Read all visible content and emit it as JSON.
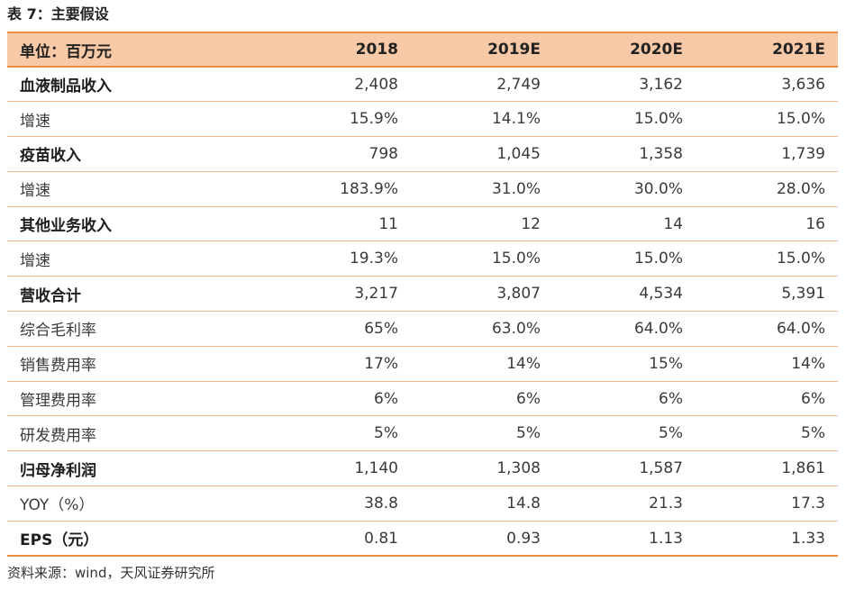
{
  "caption": "表 7：主要假设",
  "table": {
    "header": {
      "label": "单位：百万元",
      "cols": [
        "2018",
        "2019E",
        "2020E",
        "2021E"
      ]
    },
    "rows": [
      {
        "label": "血液制品收入",
        "bold": true,
        "values": [
          "2,408",
          "2,749",
          "3,162",
          "3,636"
        ]
      },
      {
        "label": "增速",
        "bold": false,
        "values": [
          "15.9%",
          "14.1%",
          "15.0%",
          "15.0%"
        ]
      },
      {
        "label": "疫苗收入",
        "bold": true,
        "values": [
          "798",
          "1,045",
          "1,358",
          "1,739"
        ]
      },
      {
        "label": "增速",
        "bold": false,
        "values": [
          "183.9%",
          "31.0%",
          "30.0%",
          "28.0%"
        ]
      },
      {
        "label": "其他业务收入",
        "bold": true,
        "values": [
          "11",
          "12",
          "14",
          "16"
        ]
      },
      {
        "label": "增速",
        "bold": false,
        "values": [
          "19.3%",
          "15.0%",
          "15.0%",
          "15.0%"
        ]
      },
      {
        "label": "营收合计",
        "bold": true,
        "values": [
          "3,217",
          "3,807",
          "4,534",
          "5,391"
        ]
      },
      {
        "label": "综合毛利率",
        "bold": false,
        "values": [
          "65%",
          "63.0%",
          "64.0%",
          "64.0%"
        ]
      },
      {
        "label": "销售费用率",
        "bold": false,
        "values": [
          "17%",
          "14%",
          "15%",
          "14%"
        ]
      },
      {
        "label": "管理费用率",
        "bold": false,
        "values": [
          "6%",
          "6%",
          "6%",
          "6%"
        ]
      },
      {
        "label": "研发费用率",
        "bold": false,
        "values": [
          "5%",
          "5%",
          "5%",
          "5%"
        ]
      },
      {
        "label": "归母净利润",
        "bold": true,
        "values": [
          "1,140",
          "1,308",
          "1,587",
          "1,861"
        ]
      },
      {
        "label": "YOY（%）",
        "bold": false,
        "values": [
          "38.8",
          "14.8",
          "21.3",
          "17.3"
        ]
      },
      {
        "label": "EPS（元）",
        "bold": true,
        "values": [
          "0.81",
          "0.93",
          "1.13",
          "1.33"
        ]
      }
    ]
  },
  "source": "资料来源：wind，天风证券研究所",
  "colors": {
    "header_fill": "#f8c9a7",
    "rule": "#f08c3c",
    "row_line": "#f3b88e"
  }
}
